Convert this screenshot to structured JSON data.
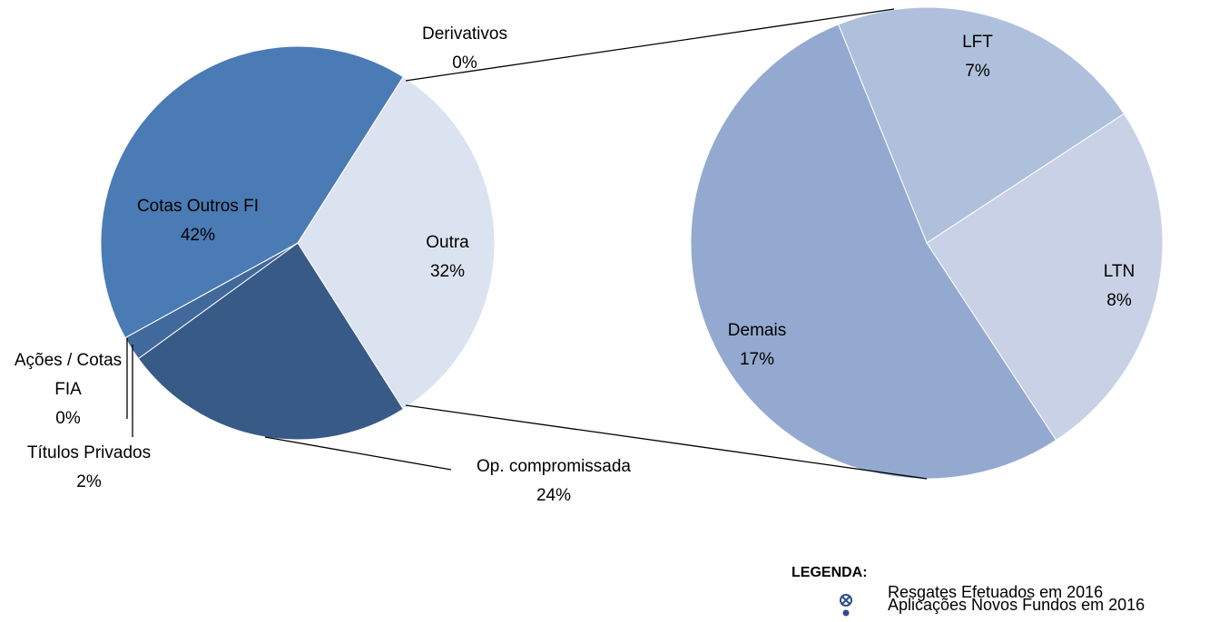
{
  "chart_data": {
    "type": "pie-of-pie",
    "categories": [
      "Outra",
      "Op. compromissada",
      "Títulos Privados",
      "Ações / Cotas FIA",
      "Cotas Outros FI",
      "Derivativos"
    ],
    "values": [
      32,
      24,
      2,
      0,
      42,
      0
    ],
    "value_labels": [
      "32%",
      "24%",
      "2%",
      "0%",
      "42%",
      "0%"
    ],
    "colors": [
      "#dce3f0",
      "#375a87",
      "#41699c",
      "#45709f",
      "#4a7bb5",
      "#4a7bb5"
    ],
    "secondary": {
      "categories": [
        "LFT",
        "LTN",
        "Demais"
      ],
      "values": [
        7,
        8,
        17
      ],
      "value_labels": [
        "7%",
        "8%",
        "17%"
      ],
      "colors": [
        "#afc0dc",
        "#c8d1e6",
        "#94a9d0"
      ]
    },
    "legend": {
      "title": "LEGENDA:",
      "items": [
        "Resgates Efetuados em 2016",
        "Aplicações Novos Fundos em 2016"
      ]
    }
  }
}
